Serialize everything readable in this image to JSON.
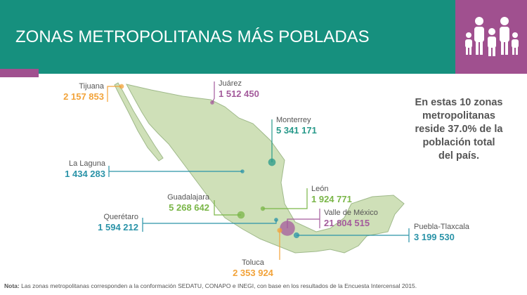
{
  "header": {
    "title": "ZONAS METROPOLITANAS MÁS POBLADAS"
  },
  "cities": [
    {
      "name": "Tijuana",
      "value": 2157853,
      "label": "2 157 853",
      "color": "#f2a33a"
    },
    {
      "name": "Juárez",
      "value": 1512450,
      "label": "1 512 450",
      "color": "#a45b9c"
    },
    {
      "name": "Monterrey",
      "value": 5341171,
      "label": "5 341 171",
      "color": "#27998a"
    },
    {
      "name": "La Laguna",
      "value": 1434283,
      "label": "1 434 283",
      "color": "#2a93a8"
    },
    {
      "name": "León",
      "value": 1924771,
      "label": "1 924 771",
      "color": "#7ab648"
    },
    {
      "name": "Guadalajara",
      "value": 5268642,
      "label": "5 268 642",
      "color": "#7ab648"
    },
    {
      "name": "Querétaro",
      "value": 1594212,
      "label": "1 594 212",
      "color": "#2a93a8"
    },
    {
      "name": "Valle de México",
      "value": 21804515,
      "label": "21 804 515",
      "color": "#a45b9c"
    },
    {
      "name": "Toluca",
      "value": 2353924,
      "label": "2 353 924",
      "color": "#f2a33a"
    },
    {
      "name": "Puebla-Tlaxcala",
      "value": 3199530,
      "label": "3 199 530",
      "color": "#2a93a8"
    }
  ],
  "summary": {
    "lines": [
      "En estas 10 zonas",
      "metropolitanas",
      "reside 37.0% de la",
      "población total",
      "del país."
    ]
  },
  "note": {
    "label": "Nota:",
    "text": "Las zonas metropolitanas corresponden a la conformación SEDATU, CONAPO e INEGI, con base en los resultados de la Encuesta Intercensal 2015."
  }
}
